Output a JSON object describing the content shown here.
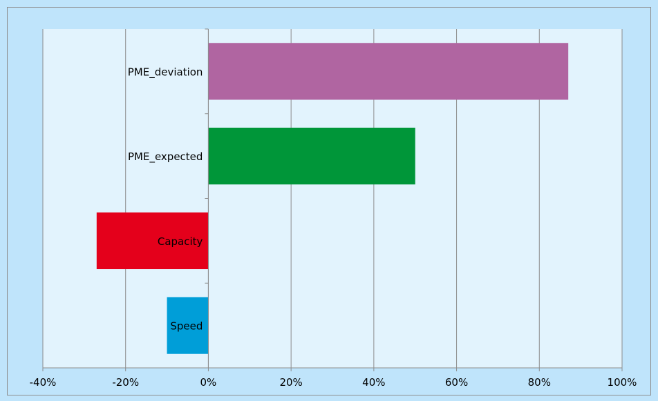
{
  "chart_data": {
    "type": "bar",
    "orientation": "horizontal",
    "categories": [
      "PME_deviation",
      "PME_expected",
      "Capacity",
      "Speed"
    ],
    "values": [
      87,
      50,
      -27,
      -10
    ],
    "value_unit": "%",
    "xlim": [
      -40,
      100
    ],
    "xticks": [
      -40,
      -20,
      0,
      20,
      40,
      60,
      80,
      100
    ],
    "xtick_labels": [
      "-40%",
      "-20%",
      "0%",
      "20%",
      "40%",
      "60%",
      "80%",
      "100%"
    ],
    "colors": [
      "#b065a1",
      "#009639",
      "#e4001b",
      "#009ed8"
    ],
    "grid": "vertical",
    "legend": "none",
    "title": "",
    "xlabel": "",
    "ylabel": ""
  },
  "colors": {
    "outer_background": "#bfe4fb",
    "plot_background": "#e2f3fd",
    "gridline": "#8c8c8c"
  }
}
